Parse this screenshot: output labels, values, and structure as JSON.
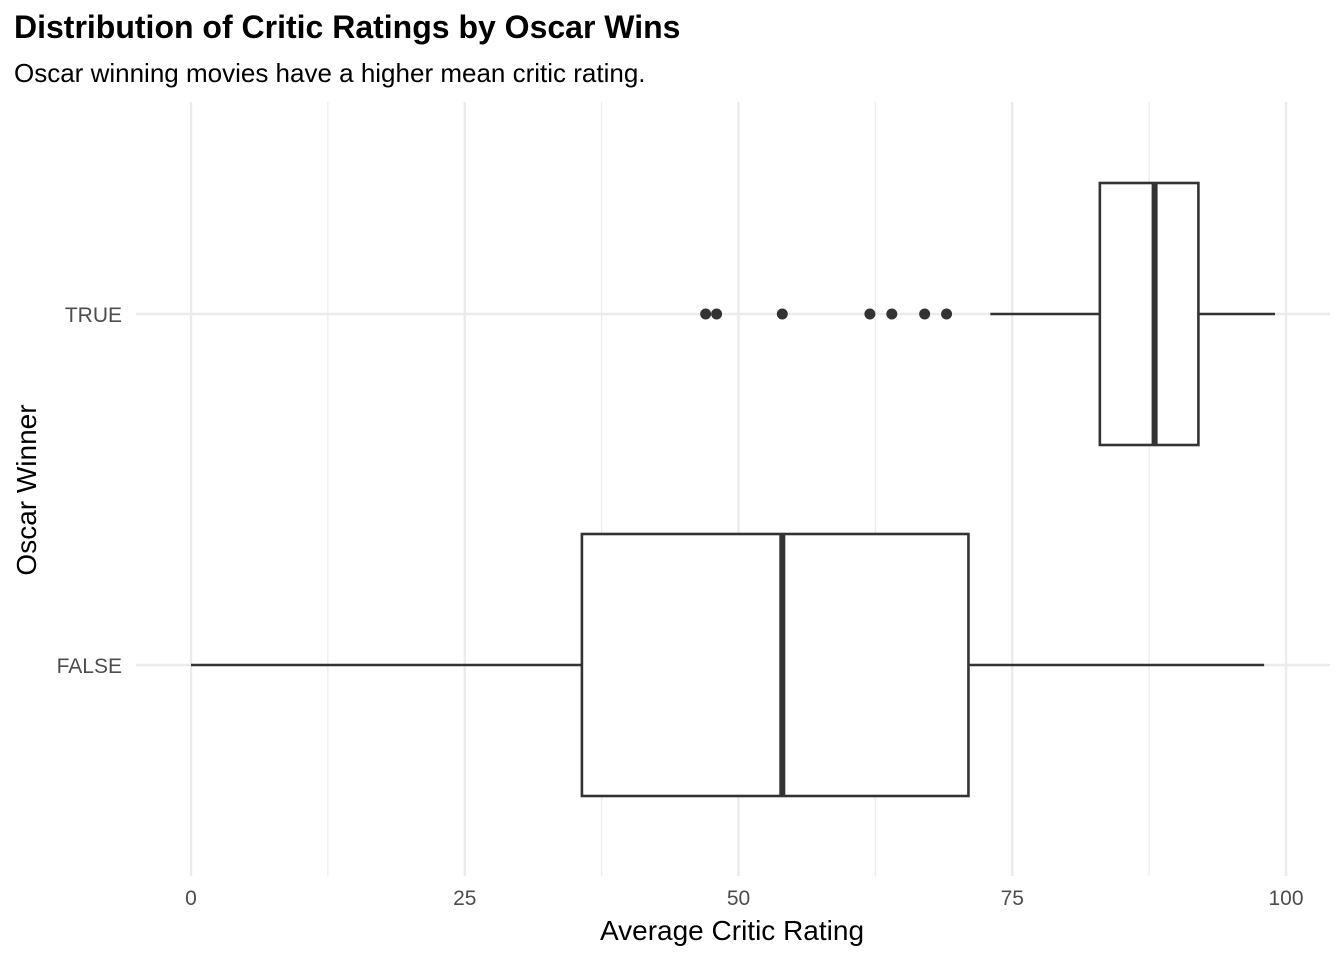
{
  "chart_data": {
    "type": "boxplot",
    "orientation": "horizontal",
    "title": "Distribution of Critic Ratings by Oscar Wins",
    "subtitle": "Oscar winning movies have a higher mean critic rating.",
    "xlabel": "Average Critic Rating",
    "ylabel": "Oscar Winner",
    "xlim": [
      0,
      100
    ],
    "x_ticks": [
      0,
      25,
      50,
      75,
      100
    ],
    "x_tick_labels": [
      "0",
      "25",
      "50",
      "75",
      "100"
    ],
    "grid": true,
    "legend": "none",
    "categories": [
      "FALSE",
      "TRUE"
    ],
    "boxes": [
      {
        "category": "FALSE",
        "whisker_low": 0,
        "q1": 35.7,
        "median": 54,
        "q3": 71,
        "whisker_high": 98,
        "outliers": []
      },
      {
        "category": "TRUE",
        "whisker_low": 73,
        "q1": 83,
        "median": 88,
        "q3": 92,
        "whisker_high": 99,
        "outliers": [
          47,
          48,
          54,
          62,
          64,
          67,
          69
        ]
      }
    ],
    "colors": {
      "box_outline": "#333333",
      "box_fill": "#ffffff",
      "grid": "#ebebeb",
      "tick_text": "#4d4d4d"
    }
  }
}
